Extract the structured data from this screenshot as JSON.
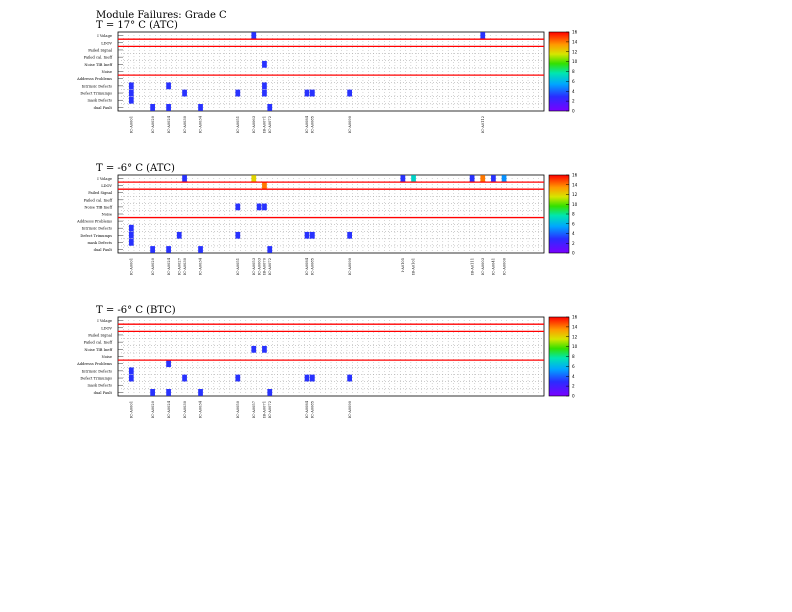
{
  "title": "Module Failures: Grade C",
  "row_labels": [
    "I Volage",
    "LDOV",
    "Failed Signal",
    "Failed cal. Ineff",
    "Noise TIB Ineff",
    "Noise",
    "Addresss Problems",
    "Intrinsic Defects",
    "Defect Trimumps",
    "mask Defects",
    "dual Fault"
  ],
  "colorbar_ticks": [
    "0",
    "2",
    "4",
    "6",
    "8",
    "10",
    "12",
    "14",
    "16"
  ],
  "colors": {
    "separator": "#ff0000",
    "grid": "#999999"
  },
  "chart_data": [
    {
      "type": "heatmap",
      "title": "T =   17° C (ATC)",
      "zlim": [
        0,
        16
      ],
      "columns": [
        {
          "label": "IC-A0001",
          "idx": 2
        },
        {
          "label": "IC-A0020",
          "idx": 6
        },
        {
          "label": "IC-A0024",
          "idx": 9
        },
        {
          "label": "IC-A0030",
          "idx": 12
        },
        {
          "label": "IC-A0034",
          "idx": 15
        },
        {
          "label": "IC-A0051",
          "idx": 22
        },
        {
          "label": "IC-A0063",
          "idx": 25
        },
        {
          "label": "IB-A0071",
          "idx": 27
        },
        {
          "label": "IC-A0072",
          "idx": 28
        },
        {
          "label": "IC-A0084",
          "idx": 35
        },
        {
          "label": "IC-A0085",
          "idx": 36
        },
        {
          "label": "IC-A0090",
          "idx": 43
        },
        {
          "label": "IC-A0112",
          "idx": 68
        }
      ],
      "cells": [
        {
          "row": 0,
          "col": 25,
          "value": 3
        },
        {
          "row": 0,
          "col": 68,
          "value": 3
        },
        {
          "row": 4,
          "col": 27,
          "value": 3
        },
        {
          "row": 7,
          "col": 2,
          "value": 3
        },
        {
          "row": 7,
          "col": 9,
          "value": 3
        },
        {
          "row": 7,
          "col": 27,
          "value": 3
        },
        {
          "row": 8,
          "col": 2,
          "value": 3
        },
        {
          "row": 8,
          "col": 12,
          "value": 3
        },
        {
          "row": 8,
          "col": 22,
          "value": 3
        },
        {
          "row": 8,
          "col": 27,
          "value": 3
        },
        {
          "row": 8,
          "col": 35,
          "value": 3
        },
        {
          "row": 8,
          "col": 36,
          "value": 3
        },
        {
          "row": 8,
          "col": 43,
          "value": 3
        },
        {
          "row": 9,
          "col": 2,
          "value": 3
        },
        {
          "row": 10,
          "col": 6,
          "value": 3
        },
        {
          "row": 10,
          "col": 9,
          "value": 3
        },
        {
          "row": 10,
          "col": 15,
          "value": 3
        },
        {
          "row": 10,
          "col": 28,
          "value": 3
        }
      ]
    },
    {
      "type": "heatmap",
      "title": "T =   -6° C (ATC)",
      "zlim": [
        0,
        16
      ],
      "columns": [
        {
          "label": "IC-A0001",
          "idx": 2
        },
        {
          "label": "IC-A0020",
          "idx": 6
        },
        {
          "label": "IC-A0024",
          "idx": 9
        },
        {
          "label": "IC-A0027",
          "idx": 11
        },
        {
          "label": "IC-A0030",
          "idx": 12
        },
        {
          "label": "IC-A0034",
          "idx": 15
        },
        {
          "label": "IC-A0051",
          "idx": 22
        },
        {
          "label": "IC-A0053",
          "idx": 25
        },
        {
          "label": "IC-A0063",
          "idx": 26
        },
        {
          "label": "IB-A0070",
          "idx": 27
        },
        {
          "label": "IC-A0072",
          "idx": 28
        },
        {
          "label": "IC-A0084",
          "idx": 35
        },
        {
          "label": "IC-A0085",
          "idx": 36
        },
        {
          "label": "IC-A0090",
          "idx": 43
        },
        {
          "label": "I-A0105",
          "idx": 53
        },
        {
          "label": "IB-A0101",
          "idx": 55
        },
        {
          "label": "IB-A0111",
          "idx": 66
        },
        {
          "label": "IC-A0003",
          "idx": 68
        },
        {
          "label": "IC-A0041",
          "idx": 70
        },
        {
          "label": "IC-A0000",
          "idx": 72
        }
      ],
      "cells": [
        {
          "row": 0,
          "col": 12,
          "value": 3
        },
        {
          "row": 0,
          "col": 25,
          "value": 12
        },
        {
          "row": 0,
          "col": 53,
          "value": 3
        },
        {
          "row": 0,
          "col": 55,
          "value": 7
        },
        {
          "row": 0,
          "col": 66,
          "value": 3
        },
        {
          "row": 0,
          "col": 68,
          "value": 14
        },
        {
          "row": 0,
          "col": 70,
          "value": 3
        },
        {
          "row": 0,
          "col": 72,
          "value": 5
        },
        {
          "row": 1,
          "col": 27,
          "value": 14
        },
        {
          "row": 4,
          "col": 22,
          "value": 3
        },
        {
          "row": 4,
          "col": 26,
          "value": 3
        },
        {
          "row": 4,
          "col": 27,
          "value": 3
        },
        {
          "row": 7,
          "col": 2,
          "value": 3
        },
        {
          "row": 8,
          "col": 2,
          "value": 3
        },
        {
          "row": 8,
          "col": 11,
          "value": 3
        },
        {
          "row": 8,
          "col": 22,
          "value": 3
        },
        {
          "row": 8,
          "col": 35,
          "value": 3
        },
        {
          "row": 8,
          "col": 36,
          "value": 3
        },
        {
          "row": 8,
          "col": 43,
          "value": 3
        },
        {
          "row": 9,
          "col": 2,
          "value": 3
        },
        {
          "row": 10,
          "col": 6,
          "value": 3
        },
        {
          "row": 10,
          "col": 9,
          "value": 3
        },
        {
          "row": 10,
          "col": 15,
          "value": 3
        },
        {
          "row": 10,
          "col": 28,
          "value": 3
        }
      ]
    },
    {
      "type": "heatmap",
      "title": "T =   -6° C (BTC)",
      "zlim": [
        0,
        16
      ],
      "columns": [
        {
          "label": "IC-A0001",
          "idx": 2
        },
        {
          "label": "IC-A0020",
          "idx": 6
        },
        {
          "label": "IC-A0024",
          "idx": 9
        },
        {
          "label": "IC-A0030",
          "idx": 12
        },
        {
          "label": "IC-A0034",
          "idx": 15
        },
        {
          "label": "IC-A0050",
          "idx": 22
        },
        {
          "label": "IC-A0057",
          "idx": 25
        },
        {
          "label": "IB-A0071",
          "idx": 27
        },
        {
          "label": "IC-A0072",
          "idx": 28
        },
        {
          "label": "IC-A0084",
          "idx": 35
        },
        {
          "label": "IC-A0085",
          "idx": 36
        },
        {
          "label": "IC-A0090",
          "idx": 43
        }
      ],
      "cells": [
        {
          "row": 4,
          "col": 25,
          "value": 3
        },
        {
          "row": 4,
          "col": 27,
          "value": 3
        },
        {
          "row": 6,
          "col": 9,
          "value": 3
        },
        {
          "row": 7,
          "col": 2,
          "value": 3
        },
        {
          "row": 8,
          "col": 2,
          "value": 3
        },
        {
          "row": 8,
          "col": 12,
          "value": 3
        },
        {
          "row": 8,
          "col": 22,
          "value": 3
        },
        {
          "row": 8,
          "col": 35,
          "value": 3
        },
        {
          "row": 8,
          "col": 36,
          "value": 3
        },
        {
          "row": 8,
          "col": 43,
          "value": 3
        },
        {
          "row": 10,
          "col": 6,
          "value": 3
        },
        {
          "row": 10,
          "col": 9,
          "value": 3
        },
        {
          "row": 10,
          "col": 15,
          "value": 3
        },
        {
          "row": 10,
          "col": 28,
          "value": 3
        }
      ]
    }
  ]
}
